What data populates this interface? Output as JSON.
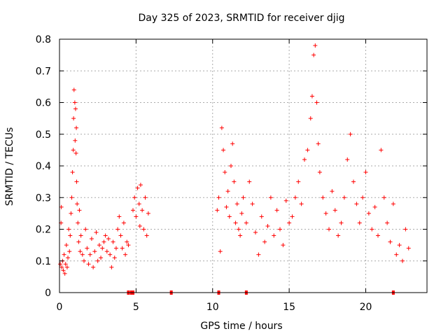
{
  "chart_data": {
    "type": "scatter",
    "title": "Day 325 of 2023, SRMTID for receiver djig",
    "xlabel": "GPS time / hours",
    "ylabel": "SRMTID / TECUs",
    "xlim": [
      0,
      24
    ],
    "ylim": [
      0,
      0.8
    ],
    "xticks": [
      0,
      5,
      10,
      15,
      20
    ],
    "xtick_labels": [
      "0",
      "5",
      "10",
      "15",
      "20"
    ],
    "yticks": [
      0,
      0.1,
      0.2,
      0.3,
      0.4,
      0.5,
      0.6,
      0.7,
      0.8
    ],
    "ytick_labels": [
      "0",
      "0.1",
      "0.2",
      "0.3",
      "0.4",
      "0.5",
      "0.6",
      "0.7",
      "0.8"
    ],
    "grid": true,
    "marker": "+",
    "color": "#ff0000",
    "series": [
      {
        "name": "SRMTID",
        "points": [
          [
            0.05,
            0.09
          ],
          [
            0.1,
            0.22
          ],
          [
            0.12,
            0.27
          ],
          [
            0.15,
            0.08
          ],
          [
            0.2,
            0.1
          ],
          [
            0.25,
            0.07
          ],
          [
            0.3,
            0.12
          ],
          [
            0.35,
            0.06
          ],
          [
            0.4,
            0.09
          ],
          [
            0.45,
            0.15
          ],
          [
            0.5,
            0.08
          ],
          [
            0.55,
            0.11
          ],
          [
            0.6,
            0.2
          ],
          [
            0.65,
            0.13
          ],
          [
            0.7,
            0.18
          ],
          [
            0.75,
            0.25
          ],
          [
            0.8,
            0.3
          ],
          [
            0.85,
            0.38
          ],
          [
            0.9,
            0.45
          ],
          [
            0.92,
            0.55
          ],
          [
            0.95,
            0.64
          ],
          [
            1.0,
            0.6
          ],
          [
            1.02,
            0.48
          ],
          [
            1.05,
            0.58
          ],
          [
            1.08,
            0.44
          ],
          [
            1.1,
            0.52
          ],
          [
            1.12,
            0.35
          ],
          [
            1.15,
            0.28
          ],
          [
            1.2,
            0.22
          ],
          [
            1.25,
            0.16
          ],
          [
            1.3,
            0.26
          ],
          [
            1.35,
            0.13
          ],
          [
            1.4,
            0.18
          ],
          [
            1.5,
            0.12
          ],
          [
            1.6,
            0.1
          ],
          [
            1.7,
            0.2
          ],
          [
            1.8,
            0.14
          ],
          [
            1.9,
            0.09
          ],
          [
            2.0,
            0.12
          ],
          [
            2.1,
            0.17
          ],
          [
            2.2,
            0.08
          ],
          [
            2.3,
            0.13
          ],
          [
            2.4,
            0.19
          ],
          [
            2.5,
            0.1
          ],
          [
            2.6,
            0.15
          ],
          [
            2.7,
            0.11
          ],
          [
            2.8,
            0.14
          ],
          [
            2.9,
            0.16
          ],
          [
            3.0,
            0.18
          ],
          [
            3.1,
            0.13
          ],
          [
            3.2,
            0.17
          ],
          [
            3.3,
            0.12
          ],
          [
            3.4,
            0.08
          ],
          [
            3.5,
            0.16
          ],
          [
            3.6,
            0.11
          ],
          [
            3.7,
            0.14
          ],
          [
            3.8,
            0.2
          ],
          [
            3.9,
            0.24
          ],
          [
            4.0,
            0.18
          ],
          [
            4.1,
            0.14
          ],
          [
            4.2,
            0.22
          ],
          [
            4.3,
            0.12
          ],
          [
            4.4,
            0.16
          ],
          [
            4.5,
            0.15
          ],
          [
            4.8,
            0.26
          ],
          [
            4.9,
            0.3
          ],
          [
            5.0,
            0.24
          ],
          [
            5.1,
            0.33
          ],
          [
            5.2,
            0.28
          ],
          [
            5.25,
            0.21
          ],
          [
            5.3,
            0.34
          ],
          [
            5.4,
            0.26
          ],
          [
            5.5,
            0.2
          ],
          [
            5.6,
            0.3
          ],
          [
            5.7,
            0.18
          ],
          [
            5.8,
            0.25
          ],
          [
            10.3,
            0.26
          ],
          [
            10.4,
            0.3
          ],
          [
            10.5,
            0.13
          ],
          [
            10.6,
            0.52
          ],
          [
            10.7,
            0.45
          ],
          [
            10.8,
            0.38
          ],
          [
            10.9,
            0.27
          ],
          [
            11.0,
            0.32
          ],
          [
            11.1,
            0.24
          ],
          [
            11.2,
            0.4
          ],
          [
            11.3,
            0.47
          ],
          [
            11.4,
            0.35
          ],
          [
            11.5,
            0.22
          ],
          [
            11.6,
            0.28
          ],
          [
            11.7,
            0.2
          ],
          [
            11.8,
            0.18
          ],
          [
            11.9,
            0.25
          ],
          [
            12.0,
            0.3
          ],
          [
            12.2,
            0.22
          ],
          [
            12.4,
            0.35
          ],
          [
            12.6,
            0.28
          ],
          [
            12.8,
            0.19
          ],
          [
            13.0,
            0.12
          ],
          [
            13.2,
            0.24
          ],
          [
            13.4,
            0.16
          ],
          [
            13.6,
            0.21
          ],
          [
            13.8,
            0.3
          ],
          [
            14.0,
            0.18
          ],
          [
            14.2,
            0.26
          ],
          [
            14.4,
            0.2
          ],
          [
            14.6,
            0.15
          ],
          [
            14.8,
            0.29
          ],
          [
            15.0,
            0.22
          ],
          [
            15.2,
            0.24
          ],
          [
            15.4,
            0.3
          ],
          [
            15.6,
            0.35
          ],
          [
            15.8,
            0.28
          ],
          [
            16.0,
            0.42
          ],
          [
            16.2,
            0.45
          ],
          [
            16.4,
            0.55
          ],
          [
            16.5,
            0.62
          ],
          [
            16.6,
            0.75
          ],
          [
            16.7,
            0.78
          ],
          [
            16.8,
            0.6
          ],
          [
            16.9,
            0.47
          ],
          [
            17.0,
            0.38
          ],
          [
            17.2,
            0.3
          ],
          [
            17.4,
            0.25
          ],
          [
            17.6,
            0.2
          ],
          [
            17.8,
            0.32
          ],
          [
            18.0,
            0.26
          ],
          [
            18.2,
            0.18
          ],
          [
            18.4,
            0.22
          ],
          [
            18.6,
            0.3
          ],
          [
            18.8,
            0.42
          ],
          [
            19.0,
            0.5
          ],
          [
            19.2,
            0.35
          ],
          [
            19.4,
            0.28
          ],
          [
            19.6,
            0.22
          ],
          [
            19.8,
            0.3
          ],
          [
            20.0,
            0.38
          ],
          [
            20.2,
            0.25
          ],
          [
            20.4,
            0.2
          ],
          [
            20.6,
            0.27
          ],
          [
            20.8,
            0.18
          ],
          [
            21.0,
            0.45
          ],
          [
            21.2,
            0.3
          ],
          [
            21.4,
            0.22
          ],
          [
            21.6,
            0.16
          ],
          [
            21.8,
            0.28
          ],
          [
            22.0,
            0.12
          ],
          [
            22.2,
            0.15
          ],
          [
            22.4,
            0.1
          ],
          [
            22.6,
            0.2
          ],
          [
            22.8,
            0.14
          ]
        ]
      }
    ],
    "zero_markers": [
      4.5,
      4.7,
      4.8,
      7.3,
      10.4,
      12.2,
      21.8
    ]
  }
}
